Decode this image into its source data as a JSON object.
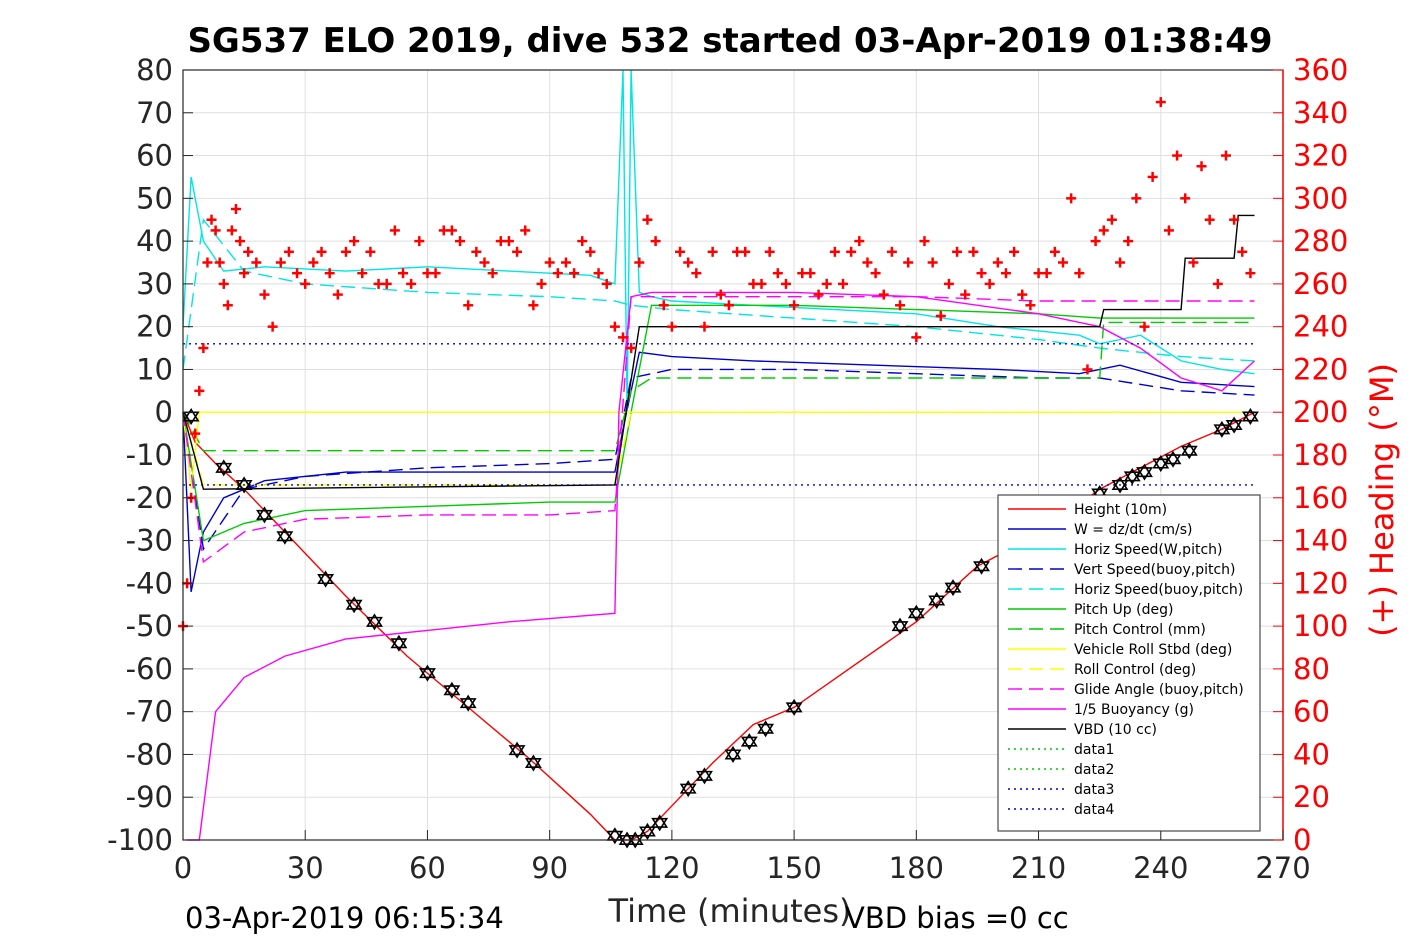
{
  "chart_data": {
    "type": "line",
    "title": "SG537 ELO 2019, dive 532 started 03-Apr-2019 01:38:49",
    "xlabel": "Time (minutes)",
    "ylabel_left": "",
    "ylabel_right": "(+) Heading (°M)",
    "xlim": [
      0,
      270
    ],
    "ylim_left": [
      -100,
      80
    ],
    "ylim_right": [
      0,
      360
    ],
    "x_ticks": [
      "0",
      "30",
      "60",
      "90",
      "120",
      "150",
      "180",
      "210",
      "240",
      "270"
    ],
    "y_left_ticks": [
      "80",
      "70",
      "60",
      "50",
      "40",
      "30",
      "20",
      "10",
      "0",
      "-10",
      "-20",
      "-30",
      "-40",
      "-50",
      "-60",
      "-70",
      "-80",
      "-90",
      "-100"
    ],
    "y_right_ticks": [
      "360",
      "340",
      "320",
      "300",
      "280",
      "260",
      "240",
      "220",
      "200",
      "180",
      "160",
      "140",
      "120",
      "100",
      "80",
      "60",
      "40",
      "20",
      "0"
    ],
    "grid": true,
    "legend_position": "bottom-right",
    "footer_left": "03-Apr-2019 06:15:34",
    "footer_right": "VBD bias =0 cc",
    "series": [
      {
        "name": "Height (10m)",
        "color": "#ff0000",
        "style": "solid",
        "x": [
          0,
          3,
          8,
          15,
          25,
          40,
          55,
          70,
          85,
          100,
          106,
          110,
          114,
          120,
          130,
          140,
          150,
          165,
          180,
          195,
          205,
          215,
          225,
          235,
          245,
          255,
          263
        ],
        "y": [
          0,
          -7,
          -12,
          -18,
          -28,
          -43,
          -57,
          -69,
          -81,
          -94,
          -100,
          -100,
          -98,
          -92,
          -82,
          -73,
          -69,
          -59,
          -49,
          -36,
          -31,
          -25,
          -18,
          -13,
          -8,
          -4,
          0
        ]
      },
      {
        "name": "W = dz/dt (cm/s)",
        "color": "#0000cc",
        "style": "solid",
        "x": [
          0,
          2,
          5,
          10,
          20,
          40,
          60,
          80,
          106,
          108,
          112,
          120,
          140,
          170,
          200,
          220,
          230,
          245,
          263
        ],
        "y": [
          0,
          -42,
          -28,
          -20,
          -16,
          -14,
          -14,
          -14,
          -14,
          -4,
          14,
          13,
          12,
          11,
          10,
          9,
          11,
          7,
          6
        ]
      },
      {
        "name": "Horiz Speed(W,pitch)",
        "color": "#00e5e5",
        "style": "solid",
        "x": [
          0,
          2,
          5,
          10,
          20,
          40,
          60,
          80,
          100,
          106,
          108,
          109,
          110,
          112,
          115,
          120,
          140,
          160,
          180,
          200,
          220,
          225,
          235,
          245,
          255,
          263
        ],
        "y": [
          20,
          55,
          40,
          33,
          34,
          33,
          34,
          33,
          32,
          30,
          80,
          0,
          80,
          28,
          27,
          26,
          25,
          24,
          23,
          20,
          18,
          16,
          18,
          12,
          10,
          9
        ]
      },
      {
        "name": "Vert Speed(buoy,pitch)",
        "color": "#0000cc",
        "style": "dashed",
        "x": [
          0,
          5,
          15,
          30,
          60,
          90,
          106,
          110,
          120,
          150,
          180,
          210,
          225,
          245,
          263
        ],
        "y": [
          0,
          -32,
          -18,
          -15,
          -13,
          -12,
          -11,
          8,
          10,
          10,
          9,
          8,
          8,
          5,
          4
        ]
      },
      {
        "name": "Horiz Speed(buoy,pitch)",
        "color": "#00e5e5",
        "style": "dashed",
        "x": [
          0,
          5,
          15,
          30,
          60,
          90,
          106,
          110,
          120,
          150,
          180,
          210,
          225,
          245,
          263
        ],
        "y": [
          10,
          45,
          33,
          30,
          28,
          27,
          26,
          25,
          24,
          22,
          20,
          17,
          15,
          13,
          12
        ]
      },
      {
        "name": "Pitch Up (deg)",
        "color": "#00cc00",
        "style": "solid",
        "x": [
          0,
          5,
          15,
          30,
          60,
          90,
          106,
          110,
          115,
          150,
          180,
          210,
          225,
          240,
          263
        ],
        "y": [
          0,
          -30,
          -26,
          -23,
          -22,
          -21,
          -21,
          0,
          25,
          25,
          24,
          23,
          22,
          22,
          22
        ]
      },
      {
        "name": "Pitch Control (mm)",
        "color": "#00cc00",
        "style": "dashed",
        "x": [
          0,
          5,
          10,
          106,
          110,
          115,
          225,
          226,
          263
        ],
        "y": [
          0,
          -9,
          -9,
          -9,
          5,
          8,
          8,
          21,
          21
        ]
      },
      {
        "name": "Vehicle Roll Stbd (deg)",
        "color": "#ffff00",
        "style": "solid",
        "x": [
          0,
          2,
          4,
          6,
          10,
          20,
          40,
          60,
          90,
          106,
          110,
          120,
          150,
          180,
          210,
          225,
          240,
          263
        ],
        "y": [
          0,
          -18,
          0,
          0,
          0,
          0,
          0,
          0,
          0,
          0,
          0,
          0,
          0,
          0,
          0,
          0,
          0,
          0
        ]
      },
      {
        "name": "Roll Control (deg)",
        "color": "#ffff00",
        "style": "dashed",
        "x": [
          0,
          5,
          106,
          110,
          263
        ],
        "y": [
          0,
          -17,
          -17,
          0,
          0
        ]
      },
      {
        "name": "Glide Angle (buoy,pitch)",
        "color": "#ff00ff",
        "style": "dashed",
        "x": [
          0,
          5,
          15,
          30,
          60,
          90,
          106,
          110,
          120,
          150,
          180,
          210,
          225,
          245,
          263
        ],
        "y": [
          0,
          -35,
          -28,
          -25,
          -24,
          -24,
          -23,
          27,
          27,
          27,
          27,
          26,
          26,
          26,
          26
        ]
      },
      {
        "name": "1/5 Buoyancy (g)",
        "color": "#ff00ff",
        "style": "solid",
        "x": [
          1,
          4,
          8,
          15,
          25,
          40,
          60,
          80,
          106,
          107,
          110,
          115,
          150,
          180,
          210,
          225,
          235,
          245,
          255,
          263
        ],
        "y": [
          -100,
          -100,
          -70,
          -62,
          -57,
          -53,
          -51,
          -49,
          -47,
          0,
          27,
          28,
          28,
          27,
          23,
          20,
          15,
          8,
          5,
          12
        ]
      },
      {
        "name": "VBD (10 cc)",
        "color": "#000000",
        "style": "solid",
        "x": [
          0,
          5,
          106,
          112,
          225,
          226,
          245,
          246,
          258,
          259,
          263
        ],
        "y": [
          0,
          -18,
          -17,
          20,
          20,
          24,
          24,
          36,
          36,
          46,
          46
        ]
      },
      {
        "name": "data1",
        "color": "#00cc00",
        "style": "dotted",
        "x": [],
        "y": []
      },
      {
        "name": "data2",
        "color": "#00cc00",
        "style": "dotted",
        "x": [],
        "y": []
      },
      {
        "name": "data3",
        "color": "#0000cc",
        "style": "dotted",
        "x": [
          0,
          263
        ],
        "y": [
          -17,
          -17
        ]
      },
      {
        "name": "data4",
        "color": "#0000cc",
        "style": "dotted",
        "x": [
          0,
          263
        ],
        "y": [
          16,
          16
        ]
      }
    ],
    "heading": {
      "name": "Heading",
      "color": "#ff0000",
      "marker": "+",
      "axis": "right",
      "x": [
        0,
        1,
        2,
        3,
        4,
        5,
        6,
        7,
        8,
        9,
        10,
        11,
        12,
        13,
        14,
        15,
        16,
        18,
        20,
        22,
        24,
        26,
        28,
        30,
        32,
        34,
        36,
        38,
        40,
        42,
        44,
        46,
        48,
        50,
        52,
        54,
        56,
        58,
        60,
        62,
        64,
        66,
        68,
        70,
        72,
        74,
        76,
        78,
        80,
        82,
        84,
        86,
        88,
        90,
        92,
        94,
        96,
        98,
        100,
        102,
        104,
        106,
        108,
        110,
        112,
        114,
        116,
        118,
        120,
        122,
        124,
        126,
        128,
        130,
        132,
        134,
        136,
        138,
        140,
        142,
        144,
        146,
        148,
        150,
        152,
        154,
        156,
        158,
        160,
        162,
        164,
        166,
        168,
        170,
        172,
        174,
        176,
        178,
        180,
        182,
        184,
        186,
        188,
        190,
        192,
        194,
        196,
        198,
        200,
        202,
        204,
        206,
        208,
        210,
        212,
        214,
        216,
        218,
        220,
        222,
        224,
        226,
        228,
        230,
        232,
        234,
        236,
        238,
        240,
        242,
        244,
        246,
        248,
        250,
        252,
        254,
        256,
        258,
        260,
        262
      ],
      "y": [
        100,
        120,
        160,
        190,
        210,
        230,
        270,
        290,
        285,
        270,
        260,
        250,
        285,
        295,
        280,
        265,
        275,
        270,
        255,
        240,
        270,
        275,
        265,
        260,
        270,
        275,
        265,
        255,
        275,
        280,
        265,
        275,
        260,
        260,
        285,
        265,
        260,
        280,
        265,
        265,
        285,
        285,
        280,
        250,
        275,
        270,
        265,
        280,
        280,
        275,
        285,
        250,
        260,
        270,
        265,
        270,
        265,
        280,
        275,
        265,
        260,
        240,
        235,
        230,
        270,
        290,
        280,
        250,
        240,
        275,
        270,
        265,
        240,
        275,
        255,
        250,
        275,
        275,
        260,
        260,
        275,
        265,
        260,
        250,
        265,
        265,
        255,
        260,
        275,
        260,
        275,
        280,
        270,
        265,
        255,
        275,
        250,
        270,
        235,
        280,
        270,
        245,
        260,
        275,
        255,
        275,
        265,
        260,
        270,
        265,
        275,
        255,
        250,
        265,
        265,
        275,
        270,
        300,
        265,
        220,
        280,
        285,
        290,
        270,
        280,
        300,
        240,
        310,
        345,
        285,
        320,
        300,
        270,
        315,
        290,
        260,
        320,
        290,
        275,
        265
      ]
    },
    "triangles_down": {
      "x": [
        2,
        10,
        15,
        20,
        25,
        35,
        42,
        47,
        53,
        60,
        66,
        70,
        82,
        86,
        106,
        109,
        111,
        114,
        117,
        124,
        128,
        135,
        139,
        143,
        150,
        176,
        180,
        185,
        189,
        196,
        225,
        230,
        233,
        236,
        240,
        243,
        247,
        255,
        258,
        262
      ],
      "y": [
        -1,
        -13,
        -17,
        -24,
        -29,
        -39,
        -45,
        -49,
        -54,
        -61,
        -65,
        -68,
        -79,
        -82,
        -99,
        -100,
        -100,
        -98,
        -96,
        -88,
        -85,
        -80,
        -77,
        -74,
        -69,
        -50,
        -47,
        -44,
        -41,
        -36,
        -19,
        -17,
        -15,
        -14,
        -12,
        -11,
        -9,
        -4,
        -3,
        -1
      ]
    }
  }
}
